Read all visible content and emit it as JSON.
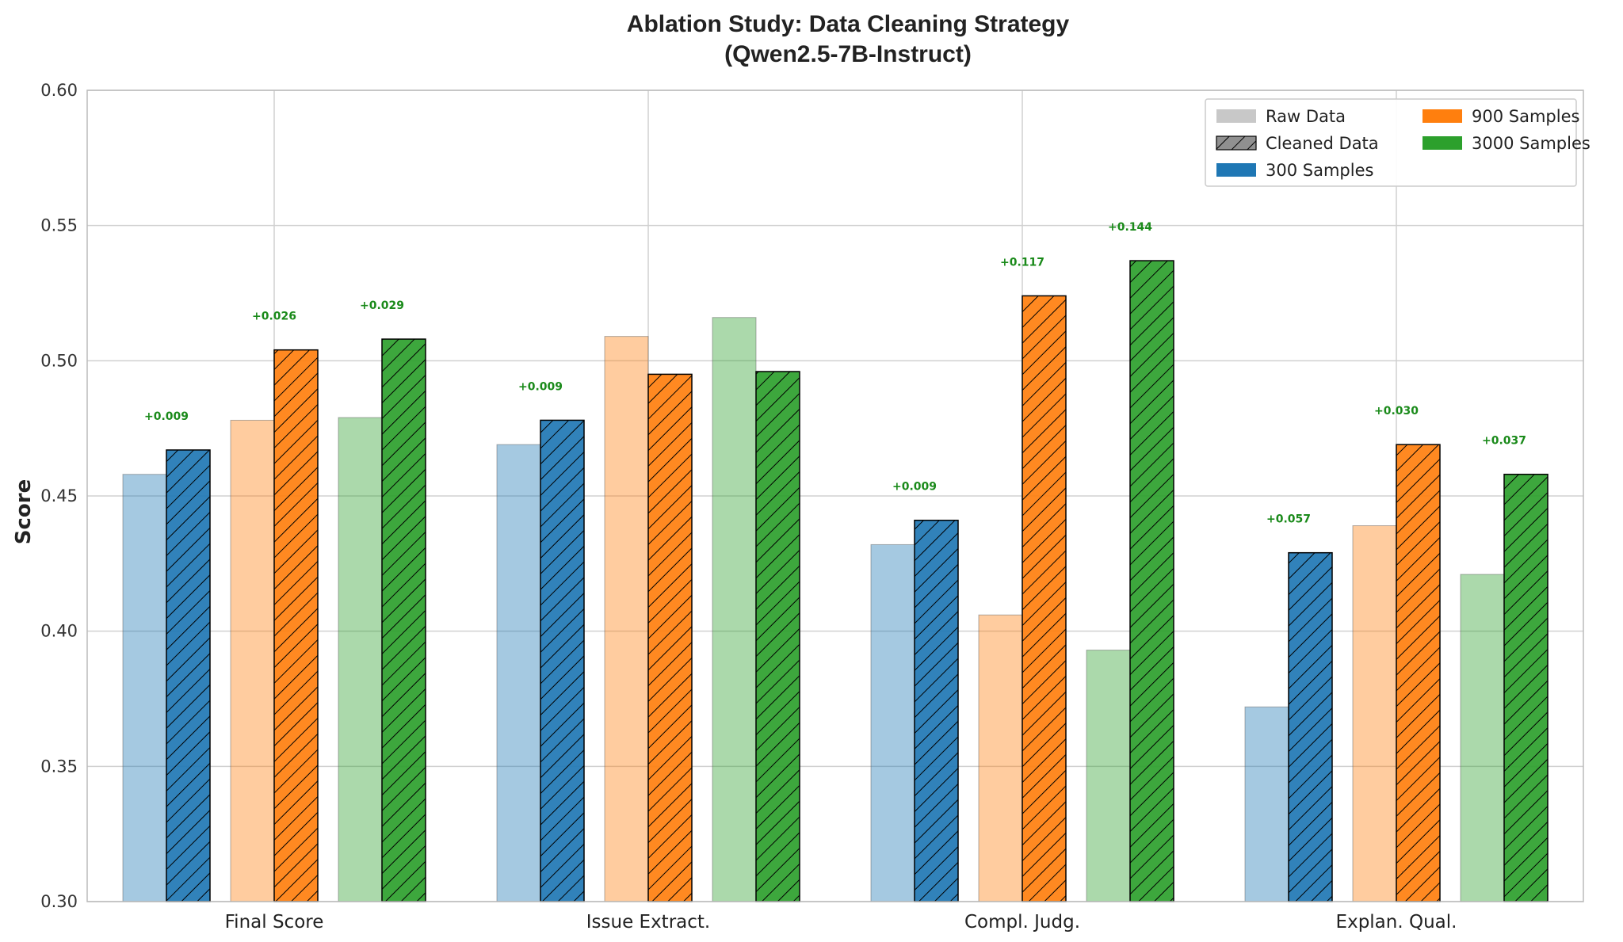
{
  "chart_data": {
    "type": "bar",
    "title": [
      "Ablation Study: Data Cleaning Strategy",
      "(Qwen2.5-7B-Instruct)"
    ],
    "xlabel": "",
    "ylabel": "Score",
    "ylim": [
      0.3,
      0.6
    ],
    "yticks": [
      "0.30",
      "0.35",
      "0.40",
      "0.45",
      "0.50",
      "0.55",
      "0.60"
    ],
    "grid": true,
    "categories": [
      "Final Score",
      "Issue Extract.",
      "Compl. Judg.",
      "Explan. Qual."
    ],
    "series": [
      {
        "name": "300 Samples Raw",
        "size": "300 Samples",
        "variant": "raw",
        "color": "#1f77b4",
        "values": [
          0.458,
          0.469,
          0.432,
          0.372
        ]
      },
      {
        "name": "300 Samples Cleaned",
        "size": "300 Samples",
        "variant": "cleaned",
        "color": "#1f77b4",
        "values": [
          0.467,
          0.478,
          0.441,
          0.429
        ]
      },
      {
        "name": "900 Samples Raw",
        "size": "900 Samples",
        "variant": "raw",
        "color": "#ff7f0e",
        "values": [
          0.478,
          0.509,
          0.406,
          0.439
        ]
      },
      {
        "name": "900 Samples Cleaned",
        "size": "900 Samples",
        "variant": "cleaned",
        "color": "#ff7f0e",
        "values": [
          0.504,
          0.495,
          0.524,
          0.469
        ]
      },
      {
        "name": "3000 Samples Raw",
        "size": "3000 Samples",
        "variant": "raw",
        "color": "#2ca02c",
        "values": [
          0.479,
          0.516,
          0.393,
          0.421
        ]
      },
      {
        "name": "3000 Samples Cleaned",
        "size": "3000 Samples",
        "variant": "cleaned",
        "color": "#2ca02c",
        "values": [
          0.508,
          0.496,
          0.537,
          0.458
        ]
      }
    ],
    "annotations": [
      {
        "category": "Final Score",
        "size": "300 Samples",
        "text": "+0.009"
      },
      {
        "category": "Final Score",
        "size": "900 Samples",
        "text": "+0.026"
      },
      {
        "category": "Final Score",
        "size": "3000 Samples",
        "text": "+0.029"
      },
      {
        "category": "Issue Extract.",
        "size": "300 Samples",
        "text": "+0.009"
      },
      {
        "category": "Compl. Judg.",
        "size": "300 Samples",
        "text": "+0.009"
      },
      {
        "category": "Compl. Judg.",
        "size": "900 Samples",
        "text": "+0.117"
      },
      {
        "category": "Compl. Judg.",
        "size": "3000 Samples",
        "text": "+0.144"
      },
      {
        "category": "Explan. Qual.",
        "size": "300 Samples",
        "text": "+0.057"
      },
      {
        "category": "Explan. Qual.",
        "size": "900 Samples",
        "text": "+0.030"
      },
      {
        "category": "Explan. Qual.",
        "size": "3000 Samples",
        "text": "+0.037"
      }
    ],
    "annotation_color": "#1a8a1a",
    "legend": {
      "position": "upper right",
      "entries": [
        {
          "label": "Raw Data",
          "style": "raw",
          "color": "#c8c8c8"
        },
        {
          "label": "Cleaned Data",
          "style": "hatched",
          "color": "#909090"
        },
        {
          "label": "300 Samples",
          "style": "solid",
          "color": "#1f77b4"
        },
        {
          "label": "900 Samples",
          "style": "solid",
          "color": "#ff7f0e"
        },
        {
          "label": "3000 Samples",
          "style": "solid",
          "color": "#2ca02c"
        }
      ]
    }
  }
}
